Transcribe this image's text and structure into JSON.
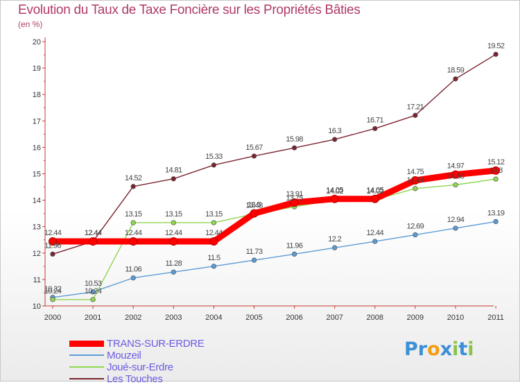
{
  "chart_data": {
    "type": "line",
    "title": "Evolution du Taux de Taxe Foncière sur les Propriétés Bâties",
    "subtitle": "(en %)",
    "xlabel": "",
    "ylabel": "",
    "categories": [
      "2000",
      "2001",
      "2002",
      "2003",
      "2004",
      "2005",
      "2006",
      "2007",
      "2008",
      "2009",
      "2010",
      "2011"
    ],
    "ylim": [
      10,
      20
    ],
    "yticks": [
      10,
      11,
      12,
      13,
      14,
      15,
      16,
      17,
      18,
      19,
      20
    ],
    "ytick_labels": [
      "10",
      "11",
      "12",
      "13",
      "14",
      "15",
      "16",
      "17",
      "18",
      "19",
      "20"
    ],
    "grid": false,
    "legend_position": "bottom-left",
    "series": [
      {
        "name": "TRANS-SUR-ERDRE",
        "color": "#ff0000",
        "values": [
          12.44,
          12.44,
          12.44,
          12.44,
          12.44,
          13.5,
          13.91,
          14.05,
          14.05,
          14.75,
          14.97,
          15.12
        ],
        "labels": [
          "12.44",
          "12.44",
          "12.44",
          "12.44",
          "12.44",
          "13.5",
          "13.91",
          "14.05",
          "14.05",
          "14.75",
          "14.97",
          "15.12"
        ]
      },
      {
        "name": "Mouzeil",
        "color": "#5b9bd5",
        "values": [
          10.32,
          10.53,
          11.06,
          11.28,
          11.5,
          11.73,
          11.96,
          12.2,
          12.44,
          12.69,
          12.94,
          13.19
        ],
        "labels": [
          "10.32",
          "10.53",
          "11.06",
          "11.28",
          "11.5",
          "11.73",
          "11.96",
          "12.2",
          "12.44",
          "12.69",
          "12.94",
          "13.19"
        ]
      },
      {
        "name": "Joué-sur-Erdre",
        "color": "#8fd650",
        "values": [
          10.24,
          10.24,
          13.15,
          13.15,
          13.15,
          13.48,
          13.75,
          14.02,
          14.02,
          14.44,
          14.58,
          14.8
        ],
        "labels": [
          "10.24",
          "10.24",
          "13.15",
          "13.15",
          "13.15",
          "13.48",
          "13.75",
          "14.02",
          "14.02",
          "14.44",
          "14.58",
          "14.8"
        ]
      },
      {
        "name": "Les Touches",
        "color": "#7a2430",
        "values": [
          11.96,
          12.44,
          14.52,
          14.81,
          15.33,
          15.67,
          15.98,
          16.3,
          16.71,
          17.21,
          18.59,
          19.52
        ],
        "labels": [
          "11.96",
          "12.44",
          "14.52",
          "14.81",
          "15.33",
          "15.67",
          "15.98",
          "16.3",
          "16.71",
          "17.21",
          "18.59",
          "19.52"
        ]
      }
    ]
  },
  "brand": {
    "letters": [
      "P",
      "r",
      "o",
      "x",
      "i",
      "t",
      "i"
    ],
    "colors": [
      "#3a8fd6",
      "#3a8fd6",
      "#f39c12",
      "#3a8fd6",
      "#8bc34a",
      "#3a8fd6",
      "#8bc34a"
    ]
  }
}
